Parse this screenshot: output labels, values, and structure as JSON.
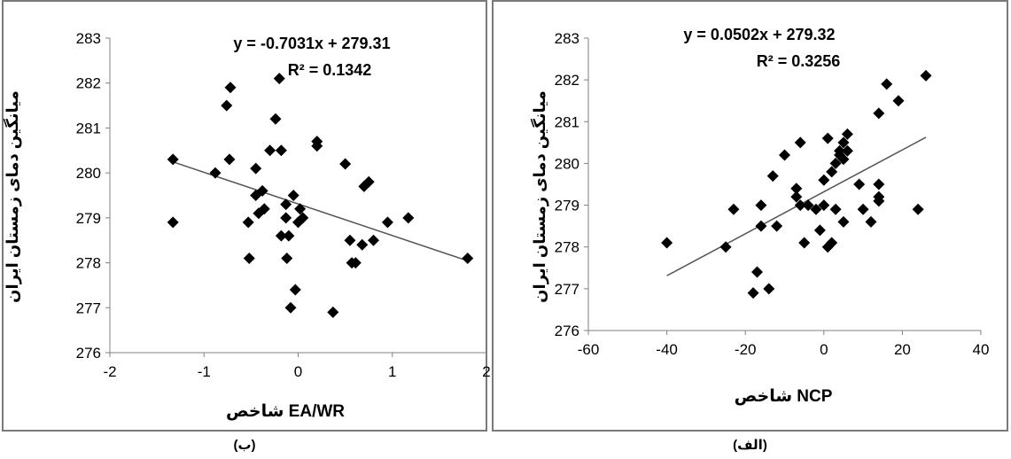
{
  "chart_data": [
    {
      "id": "left",
      "type": "scatter",
      "xlabel": "شاخص EA/WR",
      "ylabel": "میانگین دمای زمستان ایران",
      "caption": "(ب)",
      "xlim": [
        -2,
        2
      ],
      "ylim": [
        276,
        283
      ],
      "xticks": [
        -2,
        -1,
        0,
        1,
        2
      ],
      "yticks": [
        276,
        277,
        278,
        279,
        280,
        281,
        282,
        283
      ],
      "equation": "y = -0.7031x + 279.31",
      "r2": "R² = 0.1342",
      "trendline": {
        "slope": -0.7031,
        "intercept": 279.31,
        "x_range": [
          -1.33,
          1.8
        ]
      },
      "points": [
        [
          -1.33,
          280.3
        ],
        [
          -1.33,
          278.9
        ],
        [
          -0.88,
          280.0
        ],
        [
          -0.76,
          281.5
        ],
        [
          -0.72,
          281.9
        ],
        [
          -0.73,
          280.3
        ],
        [
          -0.45,
          280.1
        ],
        [
          -0.53,
          278.9
        ],
        [
          -0.52,
          278.1
        ],
        [
          -0.45,
          279.5
        ],
        [
          -0.38,
          279.6
        ],
        [
          -0.36,
          279.2
        ],
        [
          -0.42,
          279.1
        ],
        [
          -0.3,
          280.5
        ],
        [
          -0.24,
          281.2
        ],
        [
          -0.2,
          282.1
        ],
        [
          -0.18,
          280.5
        ],
        [
          -0.18,
          278.6
        ],
        [
          -0.13,
          279.3
        ],
        [
          -0.13,
          279.0
        ],
        [
          -0.12,
          278.1
        ],
        [
          -0.1,
          278.6
        ],
        [
          -0.08,
          277.0
        ],
        [
          -0.05,
          279.5
        ],
        [
          -0.03,
          277.4
        ],
        [
          0.0,
          278.9
        ],
        [
          0.02,
          279.2
        ],
        [
          0.05,
          279.0
        ],
        [
          0.2,
          280.6
        ],
        [
          0.2,
          280.7
        ],
        [
          0.37,
          276.9
        ],
        [
          0.5,
          280.2
        ],
        [
          0.55,
          278.5
        ],
        [
          0.57,
          278.0
        ],
        [
          0.61,
          278.0
        ],
        [
          0.68,
          278.4
        ],
        [
          0.7,
          279.7
        ],
        [
          0.75,
          279.8
        ],
        [
          0.8,
          278.5
        ],
        [
          0.95,
          278.9
        ],
        [
          1.17,
          279.0
        ],
        [
          1.8,
          278.1
        ]
      ]
    },
    {
      "id": "right",
      "type": "scatter",
      "xlabel": "شاخص NCP",
      "ylabel": "میانگین دمای زمستان ایران",
      "caption": "(الف)",
      "xlim": [
        -60,
        40
      ],
      "ylim": [
        276,
        283
      ],
      "xticks": [
        -60,
        -40,
        -20,
        0,
        20,
        40
      ],
      "yticks": [
        276,
        277,
        278,
        279,
        280,
        281,
        282,
        283
      ],
      "equation": "y = 0.0502x + 279.32",
      "r2": "R² = 0.3256",
      "trendline": {
        "slope": 0.0502,
        "intercept": 279.32,
        "x_range": [
          -40,
          26
        ]
      },
      "points": [
        [
          -40,
          278.1
        ],
        [
          -25,
          278.0
        ],
        [
          -23,
          278.9
        ],
        [
          -18,
          276.9
        ],
        [
          -17,
          277.4
        ],
        [
          -16,
          278.5
        ],
        [
          -16,
          279.0
        ],
        [
          -14,
          277.0
        ],
        [
          -13,
          279.7
        ],
        [
          -12,
          278.5
        ],
        [
          -10,
          280.2
        ],
        [
          -7,
          279.4
        ],
        [
          -7,
          279.2
        ],
        [
          -6,
          280.5
        ],
        [
          -6,
          279.0
        ],
        [
          -5,
          278.1
        ],
        [
          -4,
          279.0
        ],
        [
          -2,
          278.9
        ],
        [
          -1,
          278.4
        ],
        [
          0,
          279.0
        ],
        [
          0,
          279.6
        ],
        [
          1,
          278.0
        ],
        [
          1,
          280.6
        ],
        [
          2,
          278.1
        ],
        [
          2,
          279.8
        ],
        [
          3,
          278.9
        ],
        [
          3,
          280.0
        ],
        [
          4,
          280.2
        ],
        [
          4,
          280.3
        ],
        [
          5,
          280.1
        ],
        [
          5,
          278.6
        ],
        [
          5,
          280.5
        ],
        [
          6,
          280.3
        ],
        [
          6,
          280.7
        ],
        [
          9,
          279.5
        ],
        [
          10,
          278.9
        ],
        [
          12,
          278.6
        ],
        [
          14,
          281.2
        ],
        [
          14,
          279.5
        ],
        [
          14,
          279.2
        ],
        [
          14,
          279.1
        ],
        [
          16,
          281.9
        ],
        [
          19,
          281.5
        ],
        [
          24,
          278.9
        ],
        [
          26,
          282.1
        ]
      ]
    }
  ]
}
